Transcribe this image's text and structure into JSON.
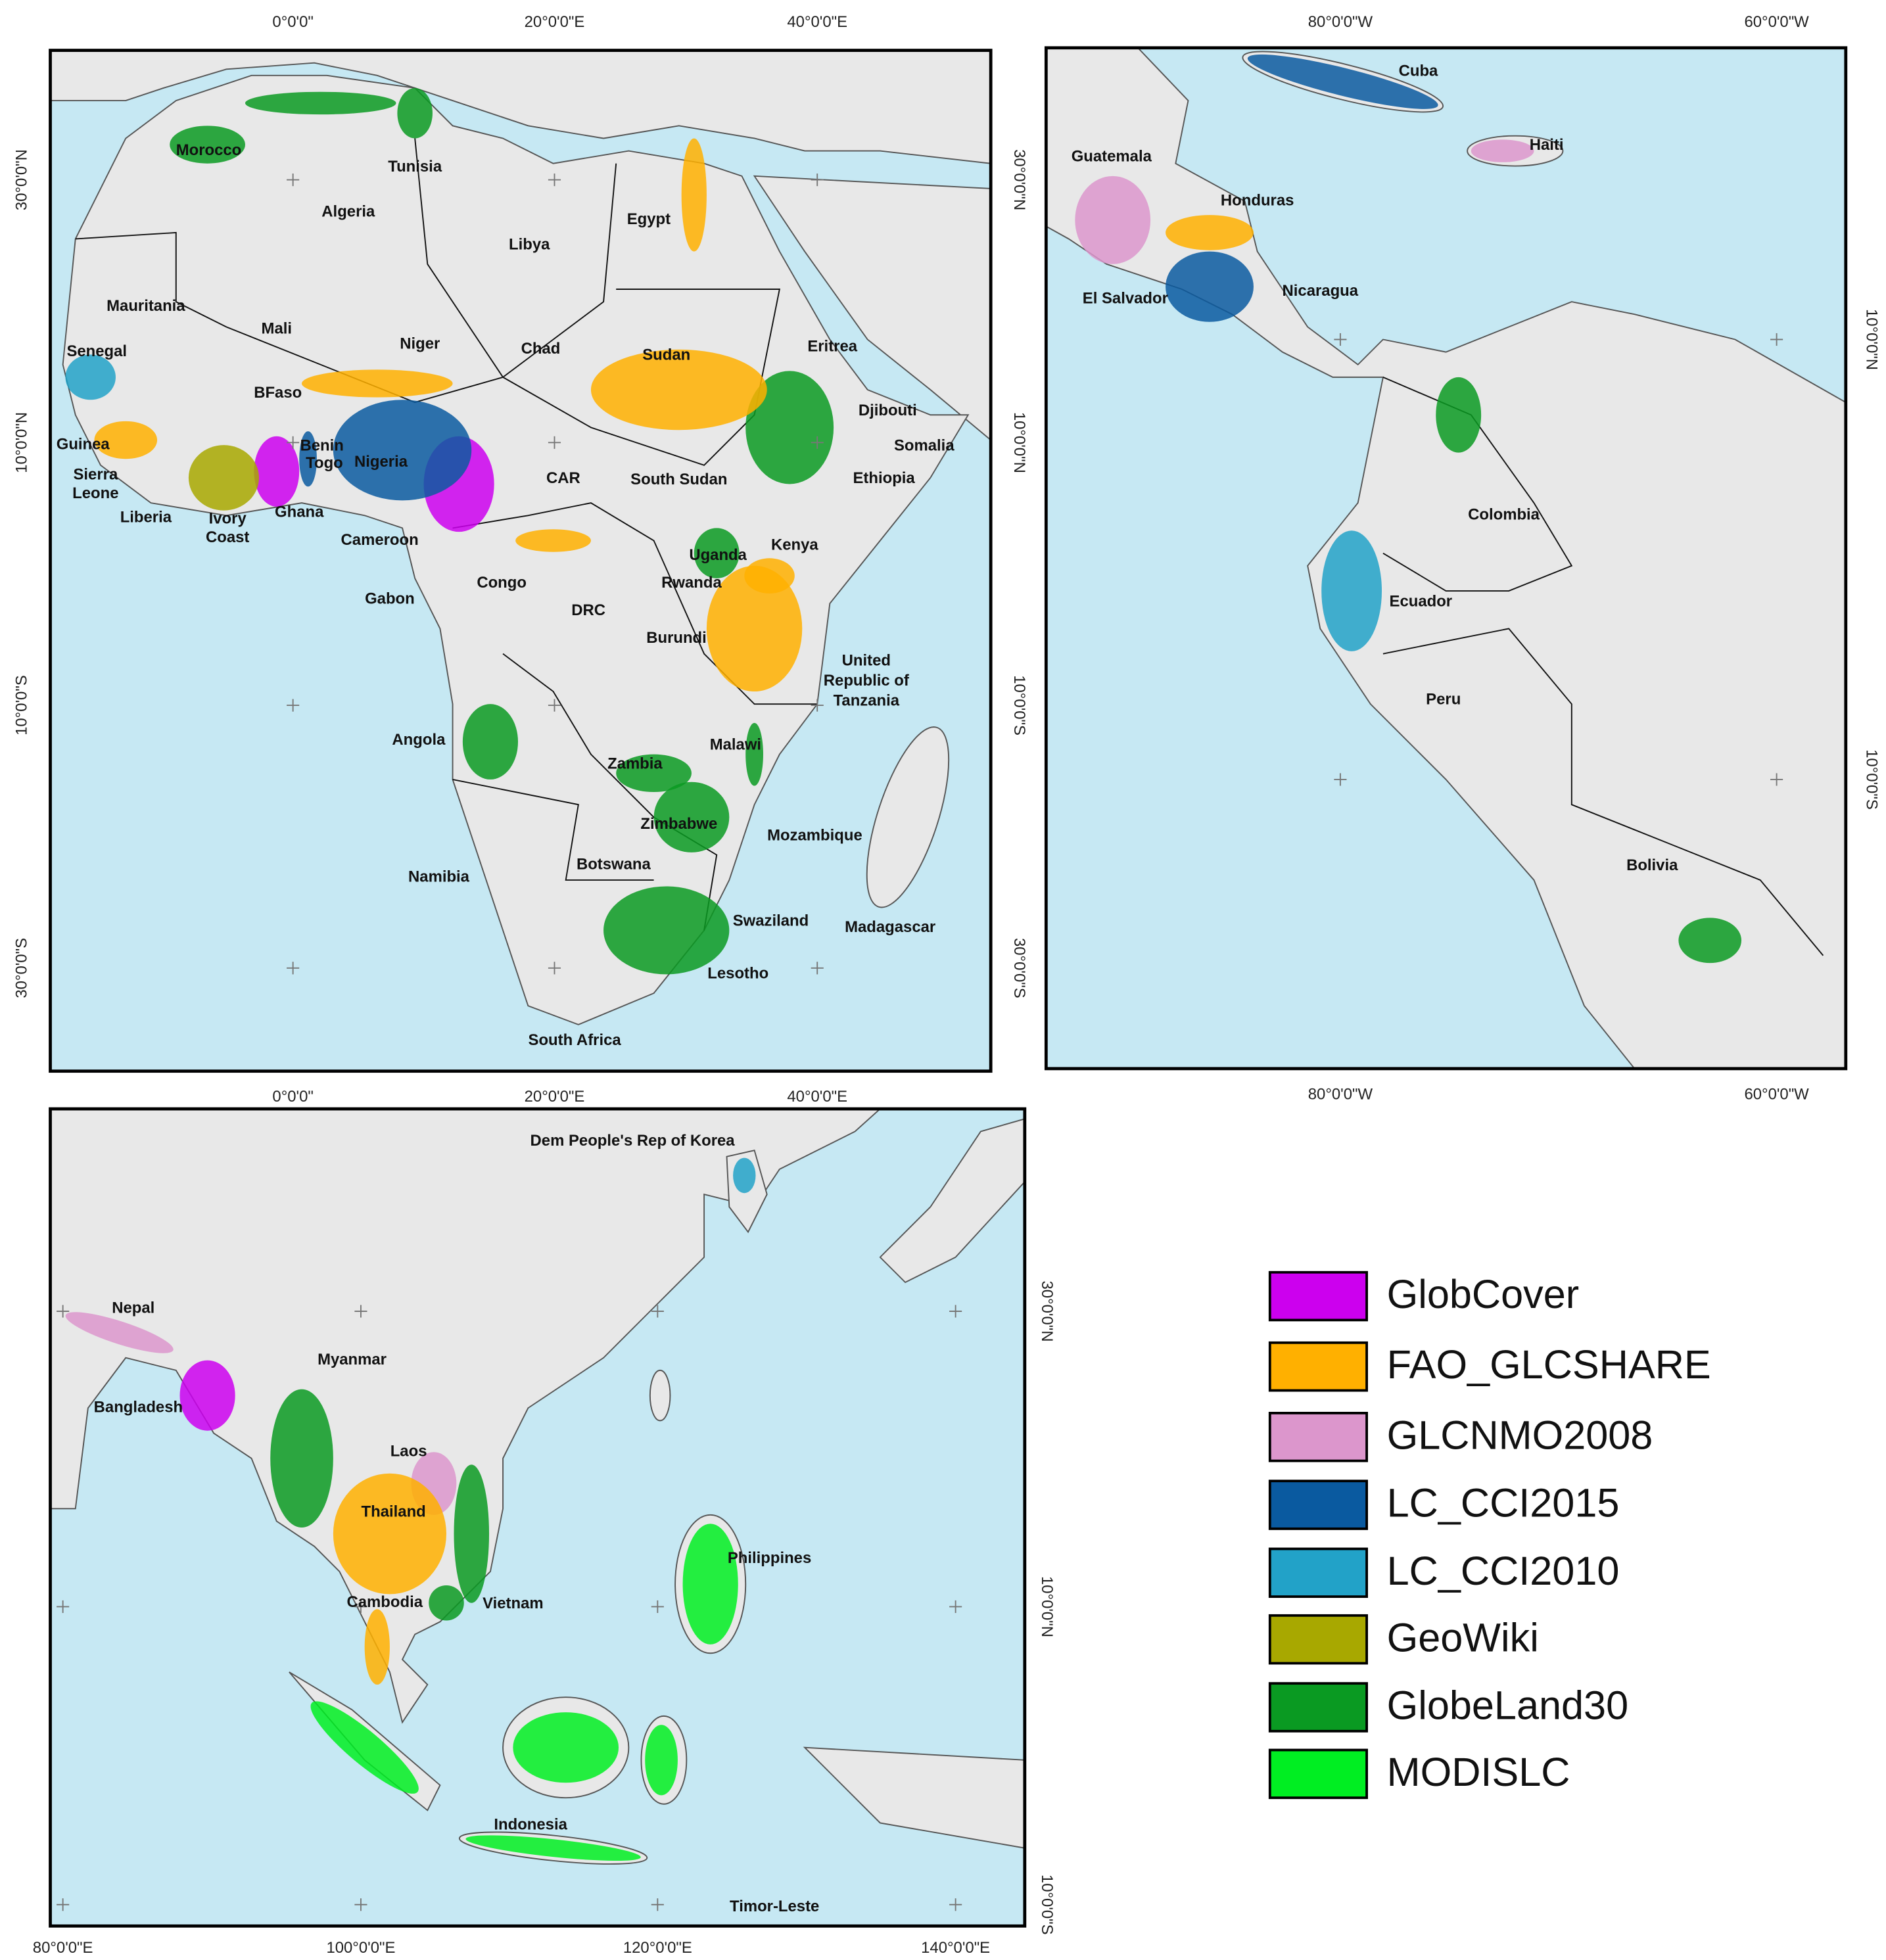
{
  "africa": {
    "top_ticks": [
      "0°0'0\"",
      "20°0'0\"E",
      "40°0'0\"E"
    ],
    "bottom_ticks": [
      "0°0'0\"",
      "20°0'0\"E",
      "40°0'0\"E"
    ],
    "left_ticks": [
      "30°0'0\"N",
      "10°0'0\"N",
      "10°0'0\"S",
      "30°0'0\"S"
    ],
    "right_ticks": [
      "30°0'0\"N",
      "10°0'0\"N",
      "10°0'0\"S",
      "30°0'0\"S"
    ],
    "countries": [
      "Morocco",
      "Tunisia",
      "Algeria",
      "Libya",
      "Egypt",
      "Mauritania",
      "Mali",
      "Niger",
      "Chad",
      "Sudan",
      "Eritrea",
      "Senegal",
      "BFaso",
      "Djibouti",
      "Guinea",
      "Benin",
      "Togo",
      "Nigeria",
      "Somalia",
      "Sierra",
      "Leone",
      "CAR",
      "South Sudan",
      "Ethiopia",
      "Ghana",
      "Liberia",
      "Ivory",
      "Coast",
      "Cameroon",
      "Uganda",
      "Kenya",
      "Congo",
      "Rwanda",
      "Gabon",
      "DRC",
      "Burundi",
      "United",
      "Republic of",
      "Tanzania",
      "Angola",
      "Malawi",
      "Zambia",
      "Zimbabwe",
      "Mozambique",
      "Namibia",
      "Botswana",
      "Swaziland",
      "Madagascar",
      "Lesotho",
      "South Africa"
    ]
  },
  "americas": {
    "top_ticks": [
      "80°0'0\"W",
      "60°0'0\"W"
    ],
    "bottom_ticks": [
      "80°0'0\"W",
      "60°0'0\"W"
    ],
    "right_ticks": [
      "10°0'0\"N",
      "10°0'0\"S"
    ],
    "countries": [
      "Cuba",
      "Haiti",
      "Guatemala",
      "Honduras",
      "Nicaragua",
      "El Salvador",
      "Colombia",
      "Ecuador",
      "Peru",
      "Bolivia"
    ]
  },
  "asia": {
    "bottom_ticks": [
      "80°0'0\"E",
      "100°0'0\"E",
      "120°0'0\"E",
      "140°0'0\"E"
    ],
    "right_ticks": [
      "30°0'0\"N",
      "10°0'0\"N",
      "10°0'0\"S"
    ],
    "countries": [
      "Dem People's Rep of Korea",
      "Nepal",
      "Myanmar",
      "Bangladesh",
      "Laos",
      "Thailand",
      "Philippines",
      "Cambodia",
      "Vietnam",
      "Indonesia",
      "Timor-Leste"
    ]
  },
  "legend": [
    {
      "label": "GlobCover",
      "color": "#cc00ee"
    },
    {
      "label": "FAO_GLCSHARE",
      "color": "#ffb000"
    },
    {
      "label": "GLCNMO2008",
      "color": "#dc96cc"
    },
    {
      "label": "LC_CCI2015",
      "color": "#0a5aa0"
    },
    {
      "label": "LC_CCI2010",
      "color": "#22a2c8"
    },
    {
      "label": "GeoWiki",
      "color": "#a8a800"
    },
    {
      "label": "GlobeLand30",
      "color": "#0a9a22"
    },
    {
      "label": "MODISLC",
      "color": "#00ee22"
    }
  ]
}
